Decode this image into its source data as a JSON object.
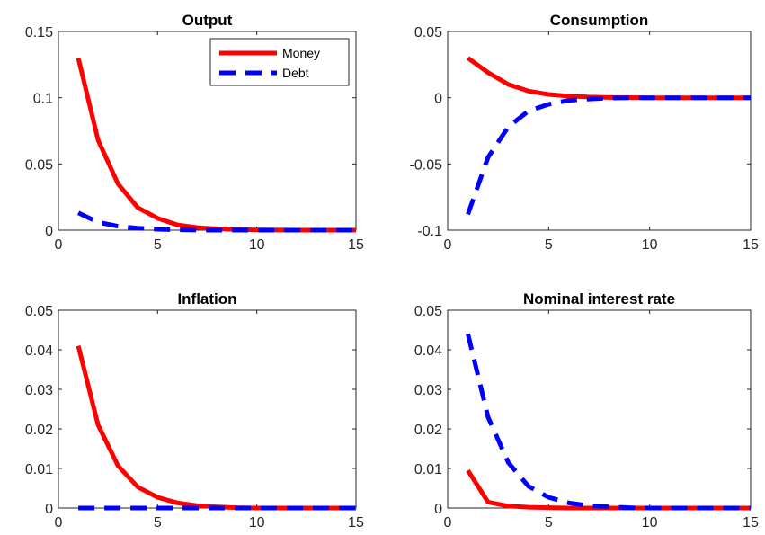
{
  "colors": {
    "Money": "#ff0000",
    "Debt": "#0000ff"
  },
  "chart_data": [
    {
      "type": "line",
      "title": "Output",
      "xlabel": "",
      "ylabel": "",
      "xlim": [
        0,
        15
      ],
      "ylim": [
        0,
        0.15
      ],
      "xticks": [
        "0",
        "5",
        "10",
        "15"
      ],
      "yticks": [
        "0",
        "0.05",
        "0.1",
        "0.15"
      ],
      "x": [
        1,
        2,
        3,
        4,
        5,
        6,
        7,
        8,
        9,
        10,
        11,
        12,
        13,
        14,
        15
      ],
      "series": [
        {
          "name": "Money",
          "values": [
            0.13,
            0.068,
            0.035,
            0.017,
            0.009,
            0.004,
            0.002,
            0.001,
            0.0005,
            0.0002,
            0.0001,
            0,
            0,
            0,
            0
          ]
        },
        {
          "name": "Debt",
          "values": [
            0.013,
            0.006,
            0.003,
            0.0015,
            0.0007,
            0.0003,
            0.0001,
            0,
            0,
            0,
            0,
            0,
            0,
            0,
            0
          ]
        }
      ],
      "legend": {
        "position": "top-right",
        "entries": [
          "Money",
          "Debt"
        ]
      }
    },
    {
      "type": "line",
      "title": "Consumption",
      "xlabel": "",
      "ylabel": "",
      "xlim": [
        0,
        15
      ],
      "ylim": [
        -0.1,
        0.05
      ],
      "xticks": [
        "0",
        "5",
        "10",
        "15"
      ],
      "yticks": [
        "-0.1",
        "-0.05",
        "0",
        "0.05"
      ],
      "x": [
        1,
        2,
        3,
        4,
        5,
        6,
        7,
        8,
        9,
        10,
        11,
        12,
        13,
        14,
        15
      ],
      "series": [
        {
          "name": "Money",
          "values": [
            0.03,
            0.019,
            0.01,
            0.005,
            0.0025,
            0.0012,
            0.0005,
            0.0002,
            0.0001,
            0,
            0,
            0,
            0,
            0,
            0
          ]
        },
        {
          "name": "Debt",
          "values": [
            -0.088,
            -0.045,
            -0.022,
            -0.01,
            -0.005,
            -0.002,
            -0.001,
            -0.0003,
            -0.0001,
            0,
            0,
            0,
            0,
            0,
            0
          ]
        }
      ]
    },
    {
      "type": "line",
      "title": "Inflation",
      "xlabel": "",
      "ylabel": "",
      "xlim": [
        0,
        15
      ],
      "ylim": [
        0,
        0.05
      ],
      "xticks": [
        "0",
        "5",
        "10",
        "15"
      ],
      "yticks": [
        "0",
        "0.01",
        "0.02",
        "0.03",
        "0.04",
        "0.05"
      ],
      "x": [
        1,
        2,
        3,
        4,
        5,
        6,
        7,
        8,
        9,
        10,
        11,
        12,
        13,
        14,
        15
      ],
      "series": [
        {
          "name": "Money",
          "values": [
            0.041,
            0.021,
            0.0107,
            0.0053,
            0.0027,
            0.0013,
            0.0006,
            0.0003,
            0.0001,
            0,
            0,
            0,
            0,
            0,
            0
          ]
        },
        {
          "name": "Debt",
          "values": [
            0,
            0,
            0,
            0,
            0,
            0,
            0,
            0,
            0,
            0,
            0,
            0,
            0,
            0,
            0
          ]
        }
      ]
    },
    {
      "type": "line",
      "title": "Nominal interest rate",
      "xlabel": "",
      "ylabel": "",
      "xlim": [
        0,
        15
      ],
      "ylim": [
        0,
        0.05
      ],
      "xticks": [
        "0",
        "5",
        "10",
        "15"
      ],
      "yticks": [
        "0",
        "0.01",
        "0.02",
        "0.03",
        "0.04",
        "0.05"
      ],
      "x": [
        1,
        2,
        3,
        4,
        5,
        6,
        7,
        8,
        9,
        10,
        11,
        12,
        13,
        14,
        15
      ],
      "series": [
        {
          "name": "Money",
          "values": [
            0.0095,
            0.0015,
            0.0005,
            0.0002,
            0.0001,
            0,
            0,
            0,
            0,
            0,
            0,
            0,
            0,
            0,
            0
          ]
        },
        {
          "name": "Debt",
          "values": [
            0.044,
            0.023,
            0.0115,
            0.0055,
            0.0027,
            0.0013,
            0.0006,
            0.0003,
            0.0001,
            0,
            0,
            0,
            0,
            0,
            0
          ]
        }
      ]
    }
  ]
}
